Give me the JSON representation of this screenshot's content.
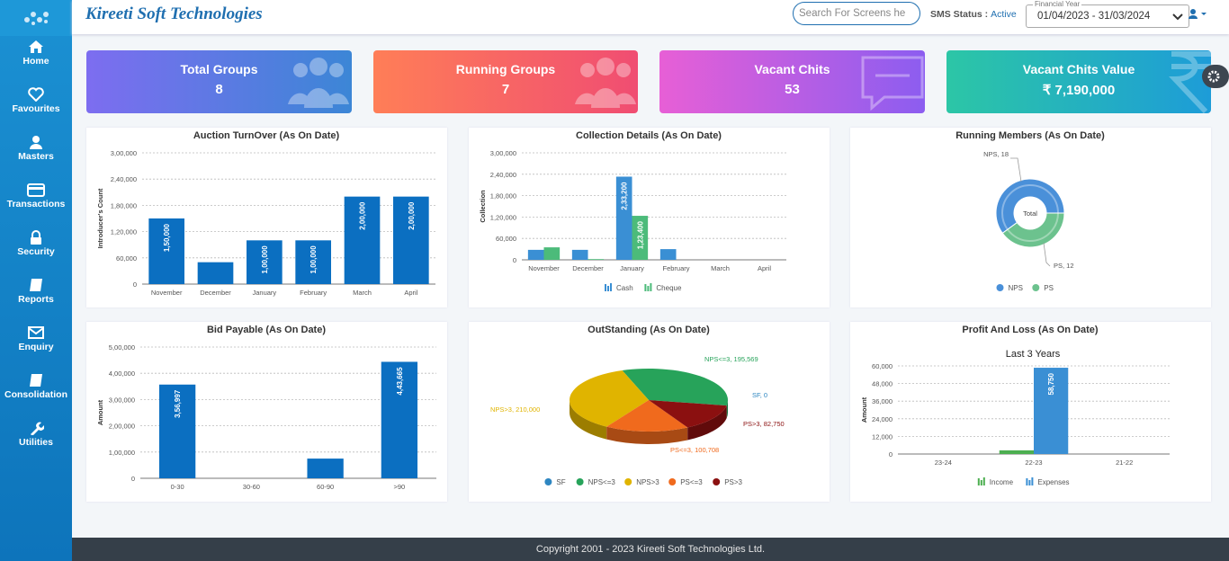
{
  "header": {
    "brand": "Kireeti Soft Technologies",
    "search_placeholder": "Search For Screens he",
    "sms_label": "SMS Status :",
    "sms_status": "Active",
    "financial_year_label": "Financial Year",
    "financial_year": "01/04/2023 - 31/03/2024"
  },
  "sidebar": [
    "Home",
    "Favourites",
    "Masters",
    "Transactions",
    "Security",
    "Reports",
    "Enquiry",
    "Consolidation",
    "Utilities"
  ],
  "cards": [
    {
      "title": "Total Groups",
      "value": 8
    },
    {
      "title": "Running Groups",
      "value": 7
    },
    {
      "title": "Vacant Chits",
      "value": 53
    },
    {
      "title": "Vacant Chits Value",
      "value": "₹ 7,190,000"
    }
  ],
  "chart_data": [
    {
      "type": "bar",
      "title": "Auction TurnOver (As On Date)",
      "y_label": "Introducer's Count",
      "categories": [
        "November",
        "December",
        "January",
        "February",
        "March",
        "April"
      ],
      "values": [
        150000,
        50000,
        100000,
        100000,
        200000,
        200000
      ],
      "value_labels": [
        "1,50,000",
        null,
        "1,00,000",
        "1,00,000",
        "2,00,000",
        "2,00,000"
      ],
      "color": "#0b6fc1",
      "ylim": [
        0,
        300000
      ],
      "yticks": [
        0,
        {
          "value": 60000,
          "label": "60,000"
        },
        {
          "value": 120000,
          "label": "1,20,000"
        },
        {
          "value": 180000,
          "label": "1,80,000"
        },
        {
          "value": 240000,
          "label": "2,40,000"
        },
        {
          "value": 300000,
          "label": "3,00,000"
        }
      ],
      "grid": true
    },
    {
      "type": "bar",
      "title": "Collection Details (As On Date)",
      "y_label": "Collection",
      "categories": [
        "November",
        "December",
        "January",
        "February",
        "March",
        "April"
      ],
      "series": [
        {
          "name": "Cash",
          "color": "#3a8fd4",
          "values": [
            28000,
            28000,
            233200,
            30000,
            0,
            0
          ],
          "value_labels": [
            null,
            null,
            "2,33,200",
            null,
            null,
            null
          ]
        },
        {
          "name": "Cheque",
          "color": "#4cbb7a",
          "values": [
            35000,
            2000,
            123400,
            0,
            0,
            0
          ],
          "value_labels": [
            null,
            null,
            "1,23,400",
            null,
            null,
            null
          ]
        }
      ],
      "ylim": [
        0,
        300000
      ],
      "yticks": [
        0,
        {
          "value": 60000,
          "label": "60,000"
        },
        {
          "value": 120000,
          "label": "1,20,000"
        },
        {
          "value": 180000,
          "label": "1,80,000"
        },
        {
          "value": 240000,
          "label": "2,40,000"
        },
        {
          "value": 300000,
          "label": "3,00,000"
        }
      ],
      "grid": true
    },
    {
      "type": "donut",
      "title": "Running Members (As On Date)",
      "center_label": "Total",
      "categories": [
        "NPS",
        "PS"
      ],
      "values": [
        18,
        12
      ],
      "value_labels": [
        "NPS, 18",
        "PS, 12"
      ],
      "colors": [
        "#4a90d9",
        "#6cc28e"
      ]
    },
    {
      "type": "bar",
      "title": "Bid Payable (As On Date)",
      "y_label": "Amount",
      "categories": [
        "0-30",
        "30-60",
        "60-90",
        ">90"
      ],
      "values": [
        356997,
        0,
        75000,
        443665
      ],
      "value_labels": [
        "3,56,997",
        null,
        null,
        "4,43,665"
      ],
      "color": "#0b6fc1",
      "ylim": [
        0,
        500000
      ],
      "yticks": [
        0,
        {
          "value": 100000,
          "label": "1,00,000"
        },
        {
          "value": 200000,
          "label": "2,00,000"
        },
        {
          "value": 300000,
          "label": "3,00,000"
        },
        {
          "value": 400000,
          "label": "4,00,000"
        },
        {
          "value": 500000,
          "label": "5,00,000"
        }
      ],
      "grid": true
    },
    {
      "type": "pie3d",
      "title": "OutStanding (As On Date)",
      "categories": [
        "SF",
        "NPS<=3",
        "NPS>3",
        "PS<=3",
        "PS>3"
      ],
      "values": [
        0,
        195569,
        210000,
        100708,
        82750
      ],
      "value_labels": [
        "SF, 0",
        "NPS<=3, 195,569",
        "NPS>3, 210,000",
        "PS<=3, 100,708",
        "PS>3, 82,750"
      ],
      "colors": [
        "#2e86c1",
        "#27a35a",
        "#e0b400",
        "#f06a1d",
        "#8b1010"
      ]
    },
    {
      "type": "bar",
      "title": "Profit And Loss (As On Date)",
      "subtitle": "Last 3 Years",
      "y_label": "Amount",
      "categories": [
        "23-24",
        "22-23",
        "21-22"
      ],
      "series": [
        {
          "name": "Income",
          "color": "#4caf50",
          "values": [
            0,
            2500,
            0
          ]
        },
        {
          "name": "Expenses",
          "color": "#3a8fd4",
          "values": [
            0,
            58750,
            0
          ],
          "value_labels": [
            null,
            "58,750",
            null
          ]
        }
      ],
      "ylim": [
        0,
        60000
      ],
      "yticks": [
        0,
        {
          "value": 12000,
          "label": "12,000"
        },
        {
          "value": 24000,
          "label": "24,000"
        },
        {
          "value": 36000,
          "label": "36,000"
        },
        {
          "value": 48000,
          "label": "48,000"
        },
        {
          "value": 60000,
          "label": "60,000"
        }
      ],
      "grid": true
    }
  ],
  "footer": "Copyright 2001 - 2023 Kireeti Soft Technologies Ltd."
}
